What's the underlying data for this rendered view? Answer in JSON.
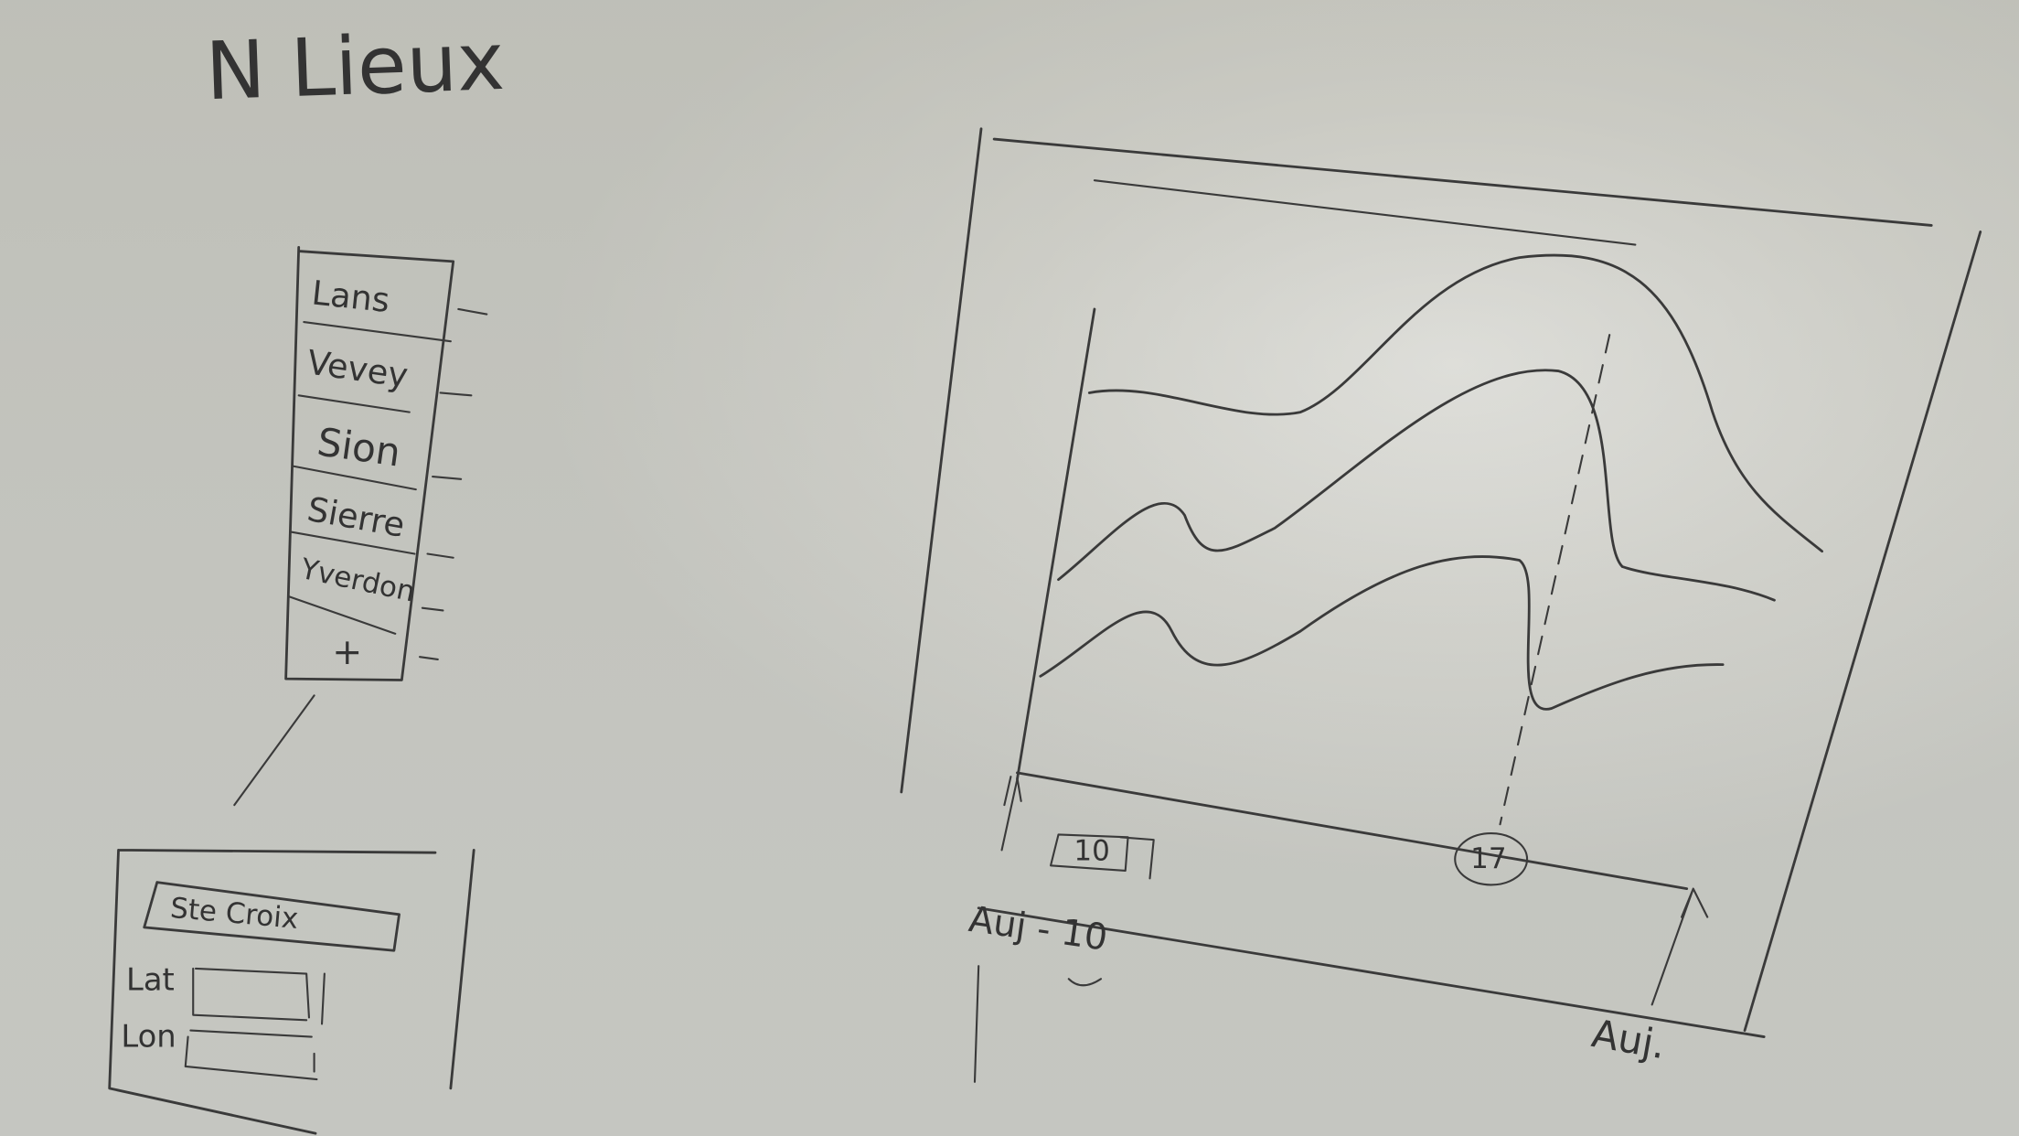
{
  "title": "N Lieux",
  "list": {
    "items": [
      "Lans",
      "Vevey",
      "Sion",
      "Sierre",
      "Yverdon"
    ],
    "add": "+"
  },
  "form": {
    "name": "Ste Croix",
    "fields": [
      "Lat",
      "Lon"
    ]
  },
  "chart": {
    "spinner": "10",
    "marker": "17",
    "start_label": "Auj - 10",
    "end_label": "Auj."
  }
}
